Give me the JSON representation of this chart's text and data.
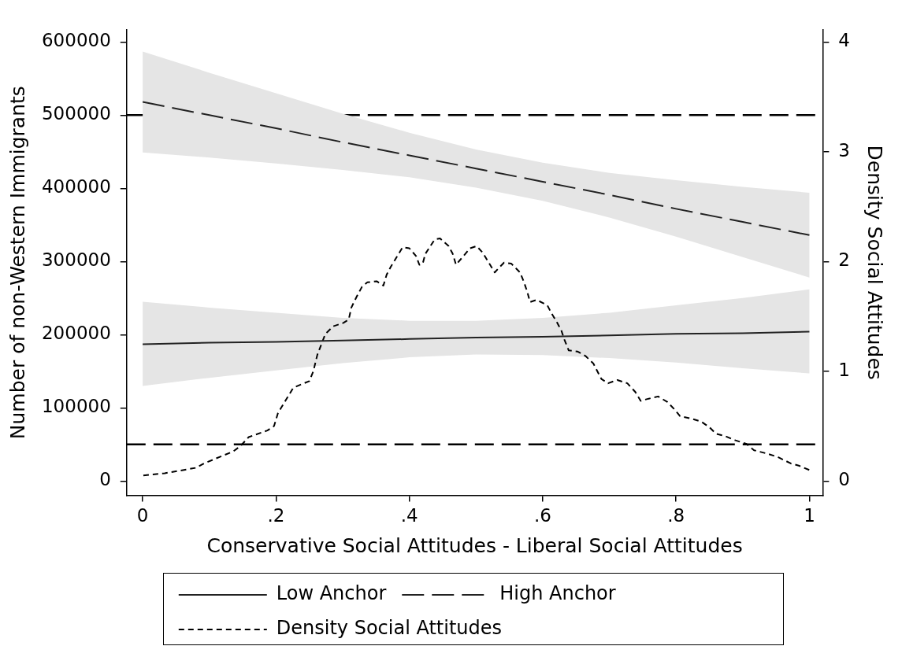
{
  "chart_data": {
    "type": "line",
    "xlabel": "Conservative Social Attitudes - Liberal Social Attitudes",
    "ylabel": "Number of non-Western Immigrants",
    "y2label": "Density Social Attitudes",
    "xlim": [
      -0.024,
      1.02
    ],
    "xticks": [
      0,
      {
        "value": 0.2,
        "label": ".2"
      },
      {
        "value": 0.4,
        "label": ".4"
      },
      {
        "value": 0.6,
        "label": ".6"
      },
      {
        "value": 0.8,
        "label": ".8"
      },
      1
    ],
    "ylim": [
      -19500,
      616500
    ],
    "yticks": [
      0,
      100000,
      200000,
      300000,
      400000,
      500000,
      600000
    ],
    "y2lim": [
      -0.13,
      4.11
    ],
    "y2ticks": [
      0,
      1,
      2,
      3,
      4
    ],
    "legend": "bottom",
    "marker": "none",
    "ref_lines": [
      {
        "axis": "y",
        "value": 500000,
        "color": "#000000",
        "line_style": "dashed"
      },
      {
        "axis": "y",
        "value": 50000,
        "color": "#000000",
        "line_style": "dashed"
      }
    ],
    "series": [
      {
        "name": "Low Anchor",
        "color": "#222222",
        "line_style": "solid",
        "x": [
          0,
          0.1,
          0.2,
          0.3,
          0.4,
          0.5,
          0.6,
          0.7,
          0.8,
          0.9,
          1
        ],
        "values": [
          187000,
          189000,
          190000,
          192000,
          194000,
          196000,
          197000,
          199000,
          201000,
          202000,
          204000
        ],
        "upper": [
          245000,
          237000,
          230000,
          223000,
          219000,
          219000,
          223000,
          230000,
          240000,
          250000,
          262000
        ],
        "lower": [
          130000,
          141000,
          151000,
          161000,
          169000,
          173000,
          172000,
          168000,
          162000,
          154000,
          147000
        ]
      },
      {
        "name": "High Anchor",
        "color": "#222222",
        "line_style": "dashed",
        "x": [
          0,
          0.1,
          0.2,
          0.3,
          0.4,
          0.5,
          0.6,
          0.7,
          0.8,
          0.9,
          1
        ],
        "values": [
          518000,
          500000,
          482000,
          463000,
          445000,
          427000,
          409000,
          391000,
          372000,
          354000,
          336000
        ],
        "upper": [
          587000,
          558000,
          530000,
          502000,
          476000,
          453000,
          435000,
          421000,
          411000,
          402000,
          394000
        ],
        "lower": [
          449000,
          442000,
          434000,
          425000,
          415000,
          401000,
          383000,
          360000,
          334000,
          306000,
          278000
        ]
      },
      {
        "name": "Density Social Attitudes",
        "axis": "y2",
        "color": "#000000",
        "line_style": "dotted",
        "x": [
          0.001,
          0.033,
          0.08,
          0.092,
          0.136,
          0.147,
          0.159,
          0.187,
          0.197,
          0.203,
          0.215,
          0.226,
          0.25,
          0.256,
          0.262,
          0.274,
          0.286,
          0.301,
          0.309,
          0.313,
          0.321,
          0.329,
          0.337,
          0.351,
          0.361,
          0.366,
          0.372,
          0.39,
          0.4,
          0.41,
          0.415,
          0.42,
          0.424,
          0.438,
          0.446,
          0.459,
          0.465,
          0.47,
          0.477,
          0.491,
          0.501,
          0.51,
          0.52,
          0.528,
          0.534,
          0.542,
          0.553,
          0.566,
          0.572,
          0.577,
          0.581,
          0.591,
          0.607,
          0.613,
          0.621,
          0.628,
          0.633,
          0.639,
          0.652,
          0.664,
          0.676,
          0.688,
          0.698,
          0.712,
          0.727,
          0.739,
          0.747,
          0.759,
          0.773,
          0.787,
          0.798,
          0.806,
          0.822,
          0.838,
          0.85,
          0.86,
          0.873,
          0.889,
          0.905,
          0.917,
          0.936,
          0.952,
          0.972,
          0.984,
          1
        ],
        "values": [
          0.05,
          0.07,
          0.12,
          0.16,
          0.27,
          0.32,
          0.4,
          0.46,
          0.5,
          0.62,
          0.74,
          0.85,
          0.91,
          1,
          1.15,
          1.34,
          1.41,
          1.44,
          1.47,
          1.58,
          1.68,
          1.77,
          1.81,
          1.82,
          1.78,
          1.88,
          1.95,
          2.13,
          2.12,
          2.05,
          1.97,
          1.98,
          2.07,
          2.2,
          2.21,
          2.14,
          2.07,
          1.97,
          2.02,
          2.12,
          2.14,
          2.08,
          1.98,
          1.9,
          1.94,
          1.99,
          1.98,
          1.9,
          1.81,
          1.72,
          1.63,
          1.65,
          1.6,
          1.53,
          1.45,
          1.37,
          1.28,
          1.19,
          1.18,
          1.14,
          1.07,
          0.93,
          0.89,
          0.92,
          0.89,
          0.81,
          0.73,
          0.75,
          0.77,
          0.72,
          0.65,
          0.59,
          0.57,
          0.54,
          0.49,
          0.43,
          0.41,
          0.37,
          0.34,
          0.28,
          0.25,
          0.22,
          0.16,
          0.14,
          0.1
        ]
      }
    ]
  }
}
